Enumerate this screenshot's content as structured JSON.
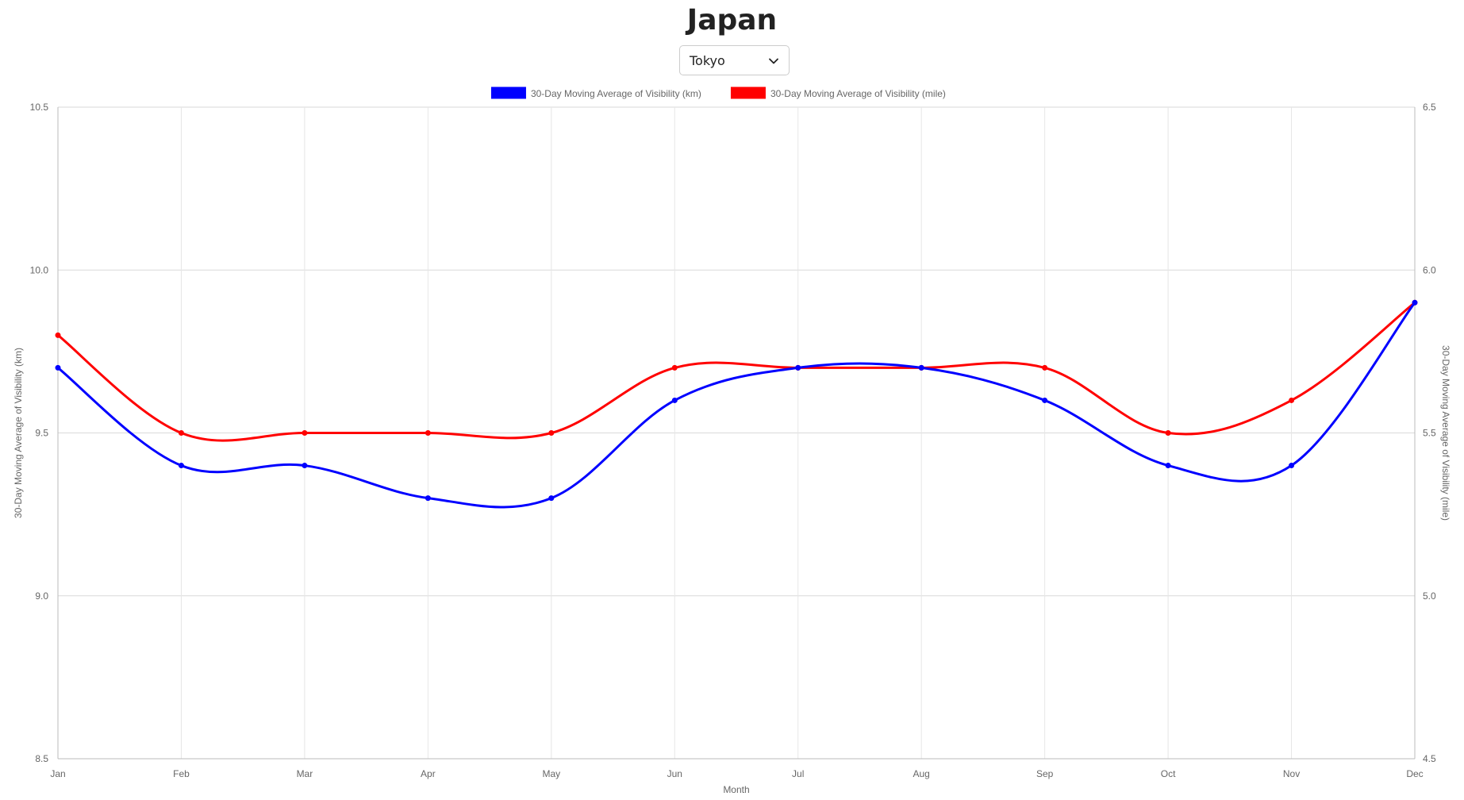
{
  "header": {
    "title": "Japan"
  },
  "city_select": {
    "value": "Tokyo",
    "icon": "chevron-down-icon"
  },
  "chart_data": {
    "type": "line",
    "x": [
      "Jan",
      "Feb",
      "Mar",
      "Apr",
      "May",
      "Jun",
      "Jul",
      "Aug",
      "Sep",
      "Oct",
      "Nov",
      "Dec"
    ],
    "xlabel": "Month",
    "y_left": {
      "label": "30-Day Moving Average of Visibility (km)",
      "lim": [
        8.5,
        10.5
      ],
      "ticks": [
        "8.5",
        "9.0",
        "9.5",
        "10.0",
        "10.5"
      ]
    },
    "y_right": {
      "label": "30-Day Moving Average of Visibility (mile)",
      "lim": [
        4.5,
        6.5
      ],
      "ticks": [
        "4.5",
        "5.0",
        "5.5",
        "6.0",
        "6.5"
      ]
    },
    "legend_position": "top",
    "grid": true,
    "series": [
      {
        "name": "30-Day Moving Average of Visibility (km)",
        "axis": "left",
        "color": "#0000ff",
        "values": [
          9.7,
          9.4,
          9.4,
          9.3,
          9.3,
          9.6,
          9.7,
          9.7,
          9.6,
          9.4,
          9.4,
          9.9
        ]
      },
      {
        "name": "30-Day Moving Average of Visibility (mile)",
        "axis": "right",
        "color": "#ff0000",
        "values": [
          5.8,
          5.5,
          5.5,
          5.5,
          5.5,
          5.7,
          5.7,
          5.7,
          5.7,
          5.5,
          5.6,
          5.9
        ]
      }
    ]
  }
}
